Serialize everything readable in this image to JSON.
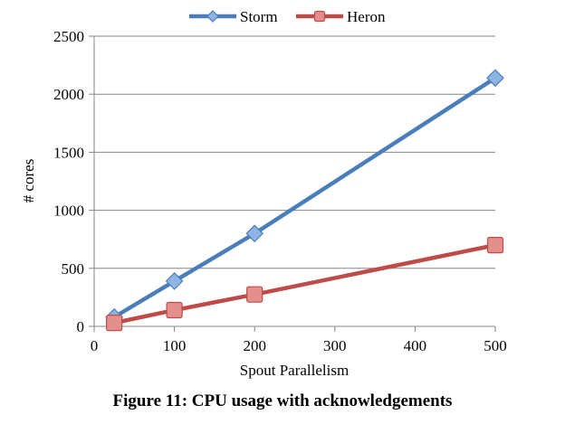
{
  "caption": "Figure 11: CPU usage with acknowledgements",
  "chart_data": {
    "type": "line",
    "xlabel": "Spout Parallelism",
    "ylabel": "# cores",
    "xlim": [
      0,
      500
    ],
    "ylim": [
      0,
      2500
    ],
    "x_ticks": [
      0,
      100,
      200,
      300,
      400,
      500
    ],
    "y_ticks": [
      0,
      500,
      1000,
      1500,
      2000,
      2500
    ],
    "grid": "horizontal",
    "legend_position": "top",
    "series": [
      {
        "name": "Storm",
        "color": "#4a7ebb",
        "marker": "diamond",
        "x": [
          25,
          100,
          200,
          500
        ],
        "y": [
          80,
          390,
          800,
          2140
        ]
      },
      {
        "name": "Heron",
        "color": "#be4b48",
        "marker": "square",
        "x": [
          25,
          100,
          200,
          500
        ],
        "y": [
          30,
          140,
          275,
          700
        ]
      }
    ]
  }
}
